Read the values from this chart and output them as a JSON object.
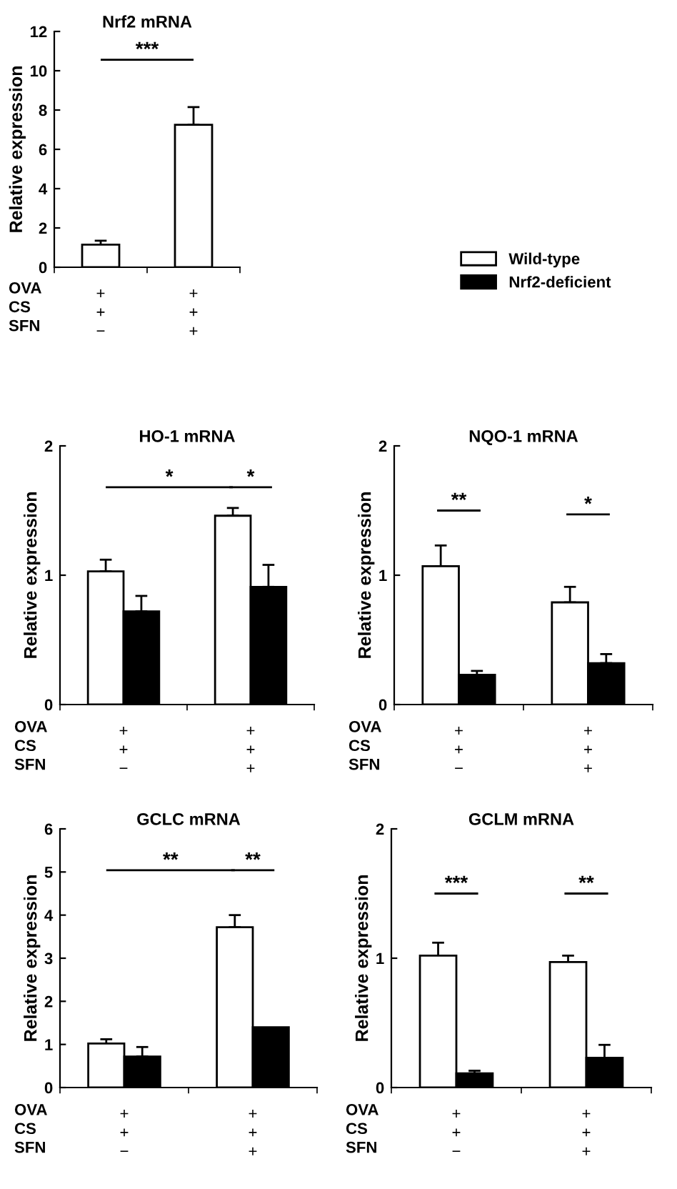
{
  "chart_data": [
    {
      "type": "bar",
      "title": "Nrf2 mRNA",
      "ylabel": "Relative expression",
      "xlabel": "OVA\nCS\nSFN",
      "categories": [
        "+\n+\n−",
        "+\n+\n+"
      ],
      "ylim": [
        0,
        12
      ],
      "yticks": [
        0,
        2,
        4,
        6,
        8,
        10,
        12
      ],
      "series": [
        {
          "color": "#ffffff",
          "values": [
            1.15,
            7.25
          ],
          "errors": [
            0.2,
            0.9
          ]
        }
      ],
      "annotations": [
        "***"
      ]
    },
    {
      "type": "bar",
      "title": "HO-1 mRNA",
      "ylabel": "Relative expression",
      "xlabel": "OVA\nCS\nSFN",
      "categories": [
        "+\n+\n−",
        "+\n+\n+"
      ],
      "ylim": [
        0,
        2
      ],
      "yticks": [
        0,
        1,
        2
      ],
      "series": [
        {
          "color": "#ffffff",
          "values": [
            1.03,
            1.46
          ],
          "errors": [
            0.09,
            0.06
          ]
        },
        {
          "color": "#000000",
          "values": [
            0.72,
            0.91
          ],
          "errors": [
            0.12,
            0.17
          ]
        }
      ],
      "annotations": [
        "*",
        "*"
      ]
    },
    {
      "type": "bar",
      "title": "NQO-1 mRNA",
      "ylabel": "Relative expression",
      "xlabel": "OVA\nCS\nSFN",
      "categories": [
        "+\n+\n−",
        "+\n+\n+"
      ],
      "ylim": [
        0,
        2
      ],
      "yticks": [
        0,
        1,
        2
      ],
      "legend": "top right",
      "series": [
        {
          "name": "Wild-type",
          "color": "#ffffff",
          "values": [
            1.07,
            0.79
          ],
          "errors": [
            0.16,
            0.12
          ]
        },
        {
          "name": "Nrf2-deficient",
          "color": "#000000",
          "values": [
            0.23,
            0.32
          ],
          "errors": [
            0.03,
            0.07
          ]
        }
      ],
      "annotations": [
        "**",
        "*"
      ]
    },
    {
      "type": "bar",
      "title": "GCLC mRNA",
      "ylabel": "Relative expression",
      "xlabel": "OVA\nCS\nSFN",
      "categories": [
        "+\n+\n−",
        "+\n+\n+"
      ],
      "ylim": [
        0,
        6
      ],
      "yticks": [
        0,
        1,
        2,
        3,
        4,
        5,
        6
      ],
      "series": [
        {
          "color": "#ffffff",
          "values": [
            1.02,
            3.72
          ],
          "errors": [
            0.1,
            0.28
          ]
        },
        {
          "color": "#000000",
          "values": [
            0.72,
            1.4
          ],
          "errors": [
            0.22,
            null
          ]
        }
      ],
      "annotations": [
        "**",
        "**"
      ]
    },
    {
      "type": "bar",
      "title": "GCLM mRNA",
      "ylabel": "Relative expression",
      "xlabel": "OVA\nCS\nSFN",
      "categories": [
        "+\n+\n−",
        "+\n+\n+"
      ],
      "ylim": [
        0,
        2
      ],
      "yticks": [
        0,
        1,
        2
      ],
      "series": [
        {
          "color": "#ffffff",
          "values": [
            1.02,
            0.97
          ],
          "errors": [
            0.1,
            0.05
          ]
        },
        {
          "color": "#000000",
          "values": [
            0.11,
            0.23
          ],
          "errors": [
            0.02,
            0.1
          ]
        }
      ],
      "annotations": [
        "***",
        "**"
      ]
    }
  ]
}
